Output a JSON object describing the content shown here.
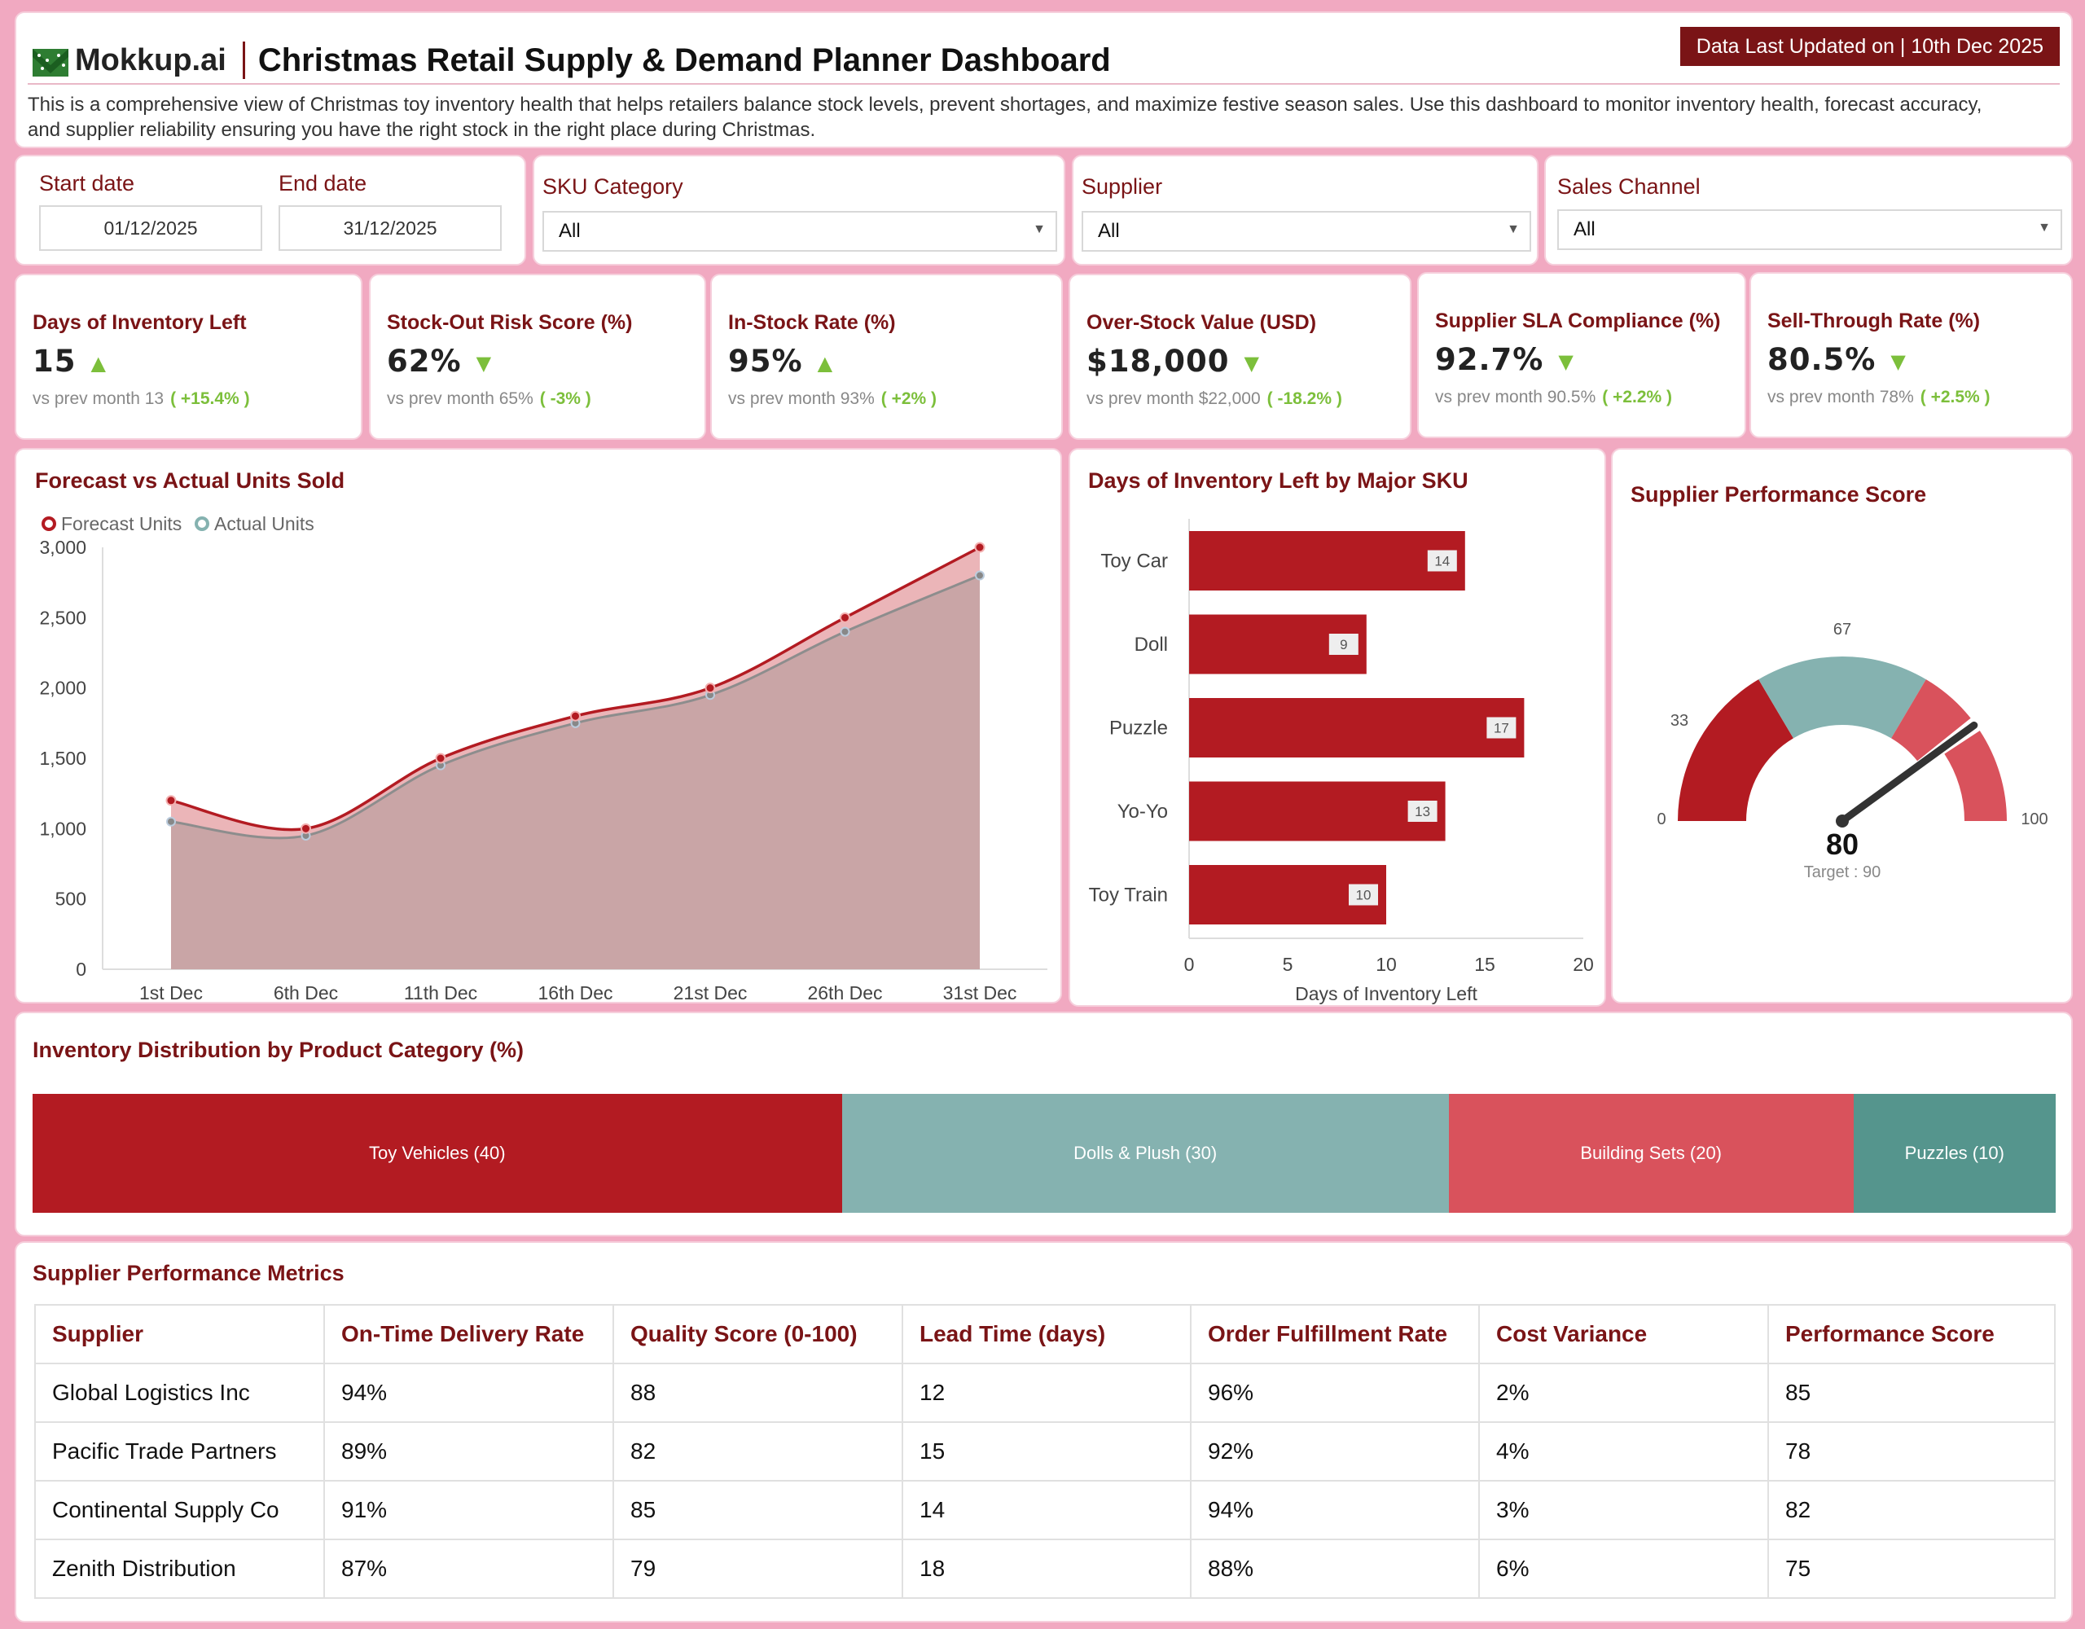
{
  "header": {
    "brand": "Mokkup.ai",
    "title": "Christmas Retail Supply & Demand Planner Dashboard",
    "updated": "Data Last Updated on | 10th Dec 2025",
    "description": "This is a comprehensive view of Christmas toy inventory health that helps retailers balance stock levels, prevent shortages, and maximize festive season sales. Use this dashboard to monitor inventory health, forecast accuracy, and supplier reliability ensuring you have the right stock in the right place during Christmas."
  },
  "filters": {
    "start_label": "Start date",
    "start_value": "01/12/2025",
    "end_label": "End date",
    "end_value": "31/12/2025",
    "sku_label": "SKU Category",
    "sku_value": "All",
    "supplier_label": "Supplier",
    "supplier_value": "All",
    "channel_label": "Sales Channel",
    "channel_value": "All"
  },
  "kpis": [
    {
      "title": "Days of Inventory Left",
      "value": "15",
      "direction": "up",
      "prev": "vs prev month 13",
      "change": "( +15.4% )"
    },
    {
      "title": "Stock-Out Risk Score (%)",
      "value": "62%",
      "direction": "down",
      "prev": "vs prev month 65%",
      "change": "( -3% )"
    },
    {
      "title": "In-Stock Rate (%)",
      "value": "95%",
      "direction": "up",
      "prev": "vs prev month 93%",
      "change": "( +2% )"
    },
    {
      "title": "Over-Stock Value (USD)",
      "value": "$18,000",
      "direction": "down",
      "prev": "vs prev month $22,000",
      "change": "( -18.2% )"
    },
    {
      "title": "Supplier SLA Compliance (%)",
      "value": "92.7%",
      "direction": "down",
      "prev": "vs prev month 90.5%",
      "change": "( +2.2% )"
    },
    {
      "title": "Sell-Through Rate (%)",
      "value": "80.5%",
      "direction": "down",
      "prev": "vs prev month 78%",
      "change": "( +2.5% )"
    }
  ],
  "colors": {
    "maroon": "#7a1416",
    "red": "#b31b22",
    "light_red": "#d9525c",
    "teal": "#85b2b0",
    "dark_teal": "#55958d",
    "green": "#7cbf3b",
    "area_fill": "#c9a5a6"
  },
  "chart_data": [
    {
      "type": "area",
      "title": "Forecast vs Actual Units Sold",
      "categories": [
        "1st Dec",
        "6th Dec",
        "11th Dec",
        "16th Dec",
        "21st Dec",
        "26th Dec",
        "31st Dec"
      ],
      "series": [
        {
          "name": "Forecast Units",
          "values": [
            1200,
            1000,
            1500,
            1800,
            2000,
            2500,
            3000
          ]
        },
        {
          "name": "Actual Units",
          "values": [
            1050,
            950,
            1450,
            1750,
            1950,
            2400,
            2800
          ]
        }
      ],
      "yticks": [
        "0",
        "500",
        "1,000",
        "1,500",
        "2,000",
        "2,500",
        "3,000"
      ],
      "ylim": [
        0,
        3000
      ],
      "legend": "top-left",
      "grid": false
    },
    {
      "type": "bar",
      "orientation": "horizontal",
      "title": "Days of Inventory Left  by Major SKU",
      "categories": [
        "Toy Car",
        "Doll",
        "Puzzle",
        "Yo-Yo",
        "Toy Train"
      ],
      "values": [
        14,
        9,
        17,
        13,
        10
      ],
      "xlabel": "Days of Inventory Left",
      "xticks": [
        "0",
        "5",
        "10",
        "15",
        "20"
      ],
      "xlim": [
        0,
        20
      ]
    },
    {
      "type": "gauge",
      "title": "Supplier Performance Score",
      "value": 80,
      "value_label": "80",
      "target_label": "Target : 90",
      "min_label": "0",
      "max_label": "100",
      "bands": [
        {
          "label": "33",
          "to": 33
        },
        {
          "label": "67",
          "to": 67
        },
        {
          "label": "",
          "to": 100
        }
      ]
    },
    {
      "type": "treemap",
      "title": "Inventory Distribution by Product Category (%)",
      "items": [
        {
          "label": "Toy Vehicles (40)",
          "value": 40
        },
        {
          "label": "Dolls & Plush (30)",
          "value": 30
        },
        {
          "label": "Building Sets (20)",
          "value": 20
        },
        {
          "label": "Puzzles (10)",
          "value": 10
        }
      ]
    }
  ],
  "table": {
    "title": "Supplier Performance Metrics",
    "headers": [
      "Supplier",
      "On-Time Delivery Rate",
      "Quality Score (0-100)",
      "Lead Time (days)",
      "Order Fulfillment Rate",
      "Cost Variance",
      "Performance Score"
    ],
    "rows": [
      [
        "Global Logistics Inc",
        "94%",
        "88",
        "12",
        "96%",
        "2%",
        "85"
      ],
      [
        "Pacific Trade Partners",
        "89%",
        "82",
        "15",
        "92%",
        "4%",
        "78"
      ],
      [
        "Continental Supply Co",
        "91%",
        "85",
        "14",
        "94%",
        "3%",
        "82"
      ],
      [
        "Zenith Distribution",
        "87%",
        "79",
        "18",
        "88%",
        "6%",
        "75"
      ]
    ]
  }
}
